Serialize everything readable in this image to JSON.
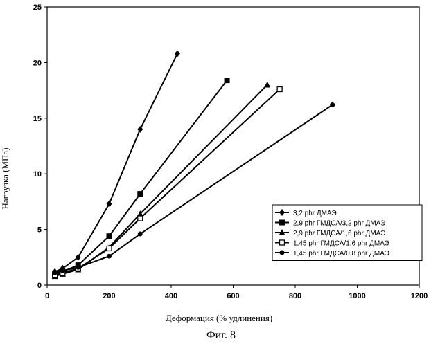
{
  "chart_data": {
    "type": "line",
    "xlabel": "Деформация (% удлинения)",
    "ylabel": "Нагрузка (МПа)",
    "xlim": [
      0,
      1200
    ],
    "ylim": [
      0,
      25
    ],
    "xticks": [
      0,
      200,
      400,
      600,
      800,
      1000,
      1200
    ],
    "yticks": [
      0,
      5,
      10,
      15,
      20,
      25
    ],
    "grid": false,
    "legend_position": "right",
    "series": [
      {
        "name": "3,2 phr ДМАЭ",
        "marker": "diamond",
        "x": [
          25,
          50,
          100,
          200,
          300,
          420
        ],
        "y": [
          1.2,
          1.5,
          2.5,
          7.3,
          14.0,
          20.8
        ]
      },
      {
        "name": "2,9 phr ГМДСА/3,2 phr ДМАЭ",
        "marker": "square",
        "x": [
          25,
          50,
          100,
          200,
          300,
          580
        ],
        "y": [
          1.0,
          1.2,
          1.8,
          4.4,
          8.2,
          18.4
        ]
      },
      {
        "name": "2,9 phr ГМДСА/1,6 phr ДМАЭ",
        "marker": "triangle",
        "x": [
          25,
          50,
          100,
          200,
          300,
          710
        ],
        "y": [
          0.8,
          1.0,
          1.4,
          3.4,
          6.4,
          18.0
        ]
      },
      {
        "name": "1,45 phr ГМДСА/1,6 phr ДМАЭ",
        "marker": "open-square",
        "x": [
          25,
          50,
          100,
          200,
          300,
          750
        ],
        "y": [
          0.9,
          1.1,
          1.5,
          3.3,
          6.0,
          17.6
        ]
      },
      {
        "name": "1,45 phr ГМДСА/0,8 phr ДМАЭ",
        "marker": "circle",
        "x": [
          25,
          50,
          100,
          200,
          300,
          920
        ],
        "y": [
          1.1,
          1.3,
          1.6,
          2.6,
          4.6,
          16.2
        ]
      }
    ]
  },
  "caption": "Фиг. 8"
}
